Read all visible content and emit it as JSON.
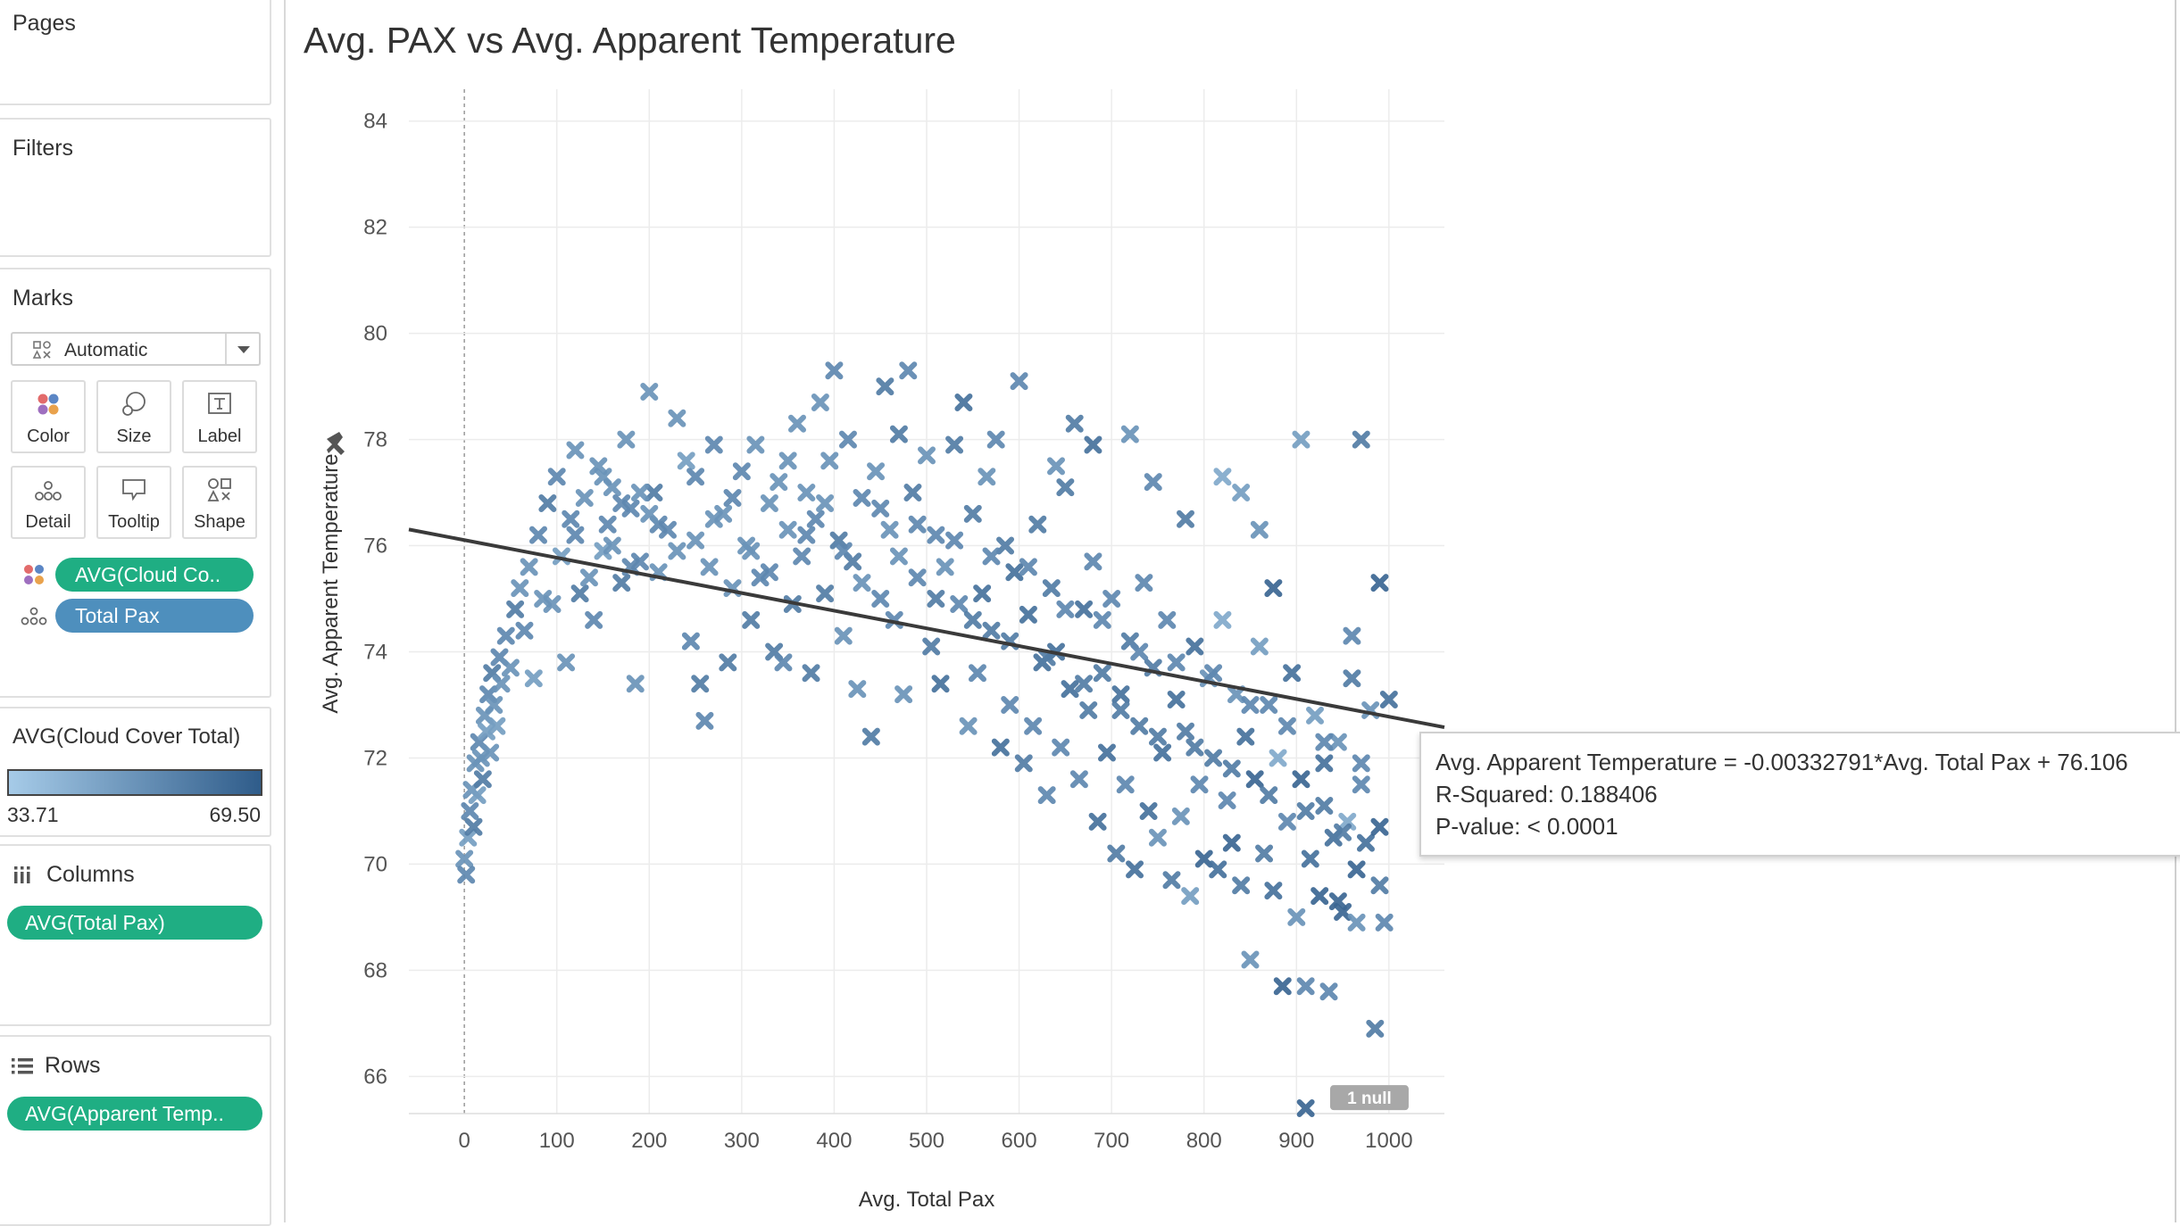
{
  "sidebar": {
    "pages_title": "Pages",
    "filters_title": "Filters",
    "marks_title": "Marks",
    "mark_type": "Automatic",
    "mark_buttons": [
      "Color",
      "Size",
      "Label",
      "Detail",
      "Tooltip",
      "Shape"
    ],
    "mark_fields": [
      {
        "label": "AVG(Cloud Co..",
        "icon": "color-dots-icon"
      },
      {
        "label": "Total Pax",
        "icon": "detail-dots-icon"
      }
    ],
    "legend": {
      "title": "AVG(Cloud Cover Total)",
      "min": "33.71",
      "max": "69.50",
      "color_low": "#a6cbe8",
      "color_high": "#2f5c8a"
    },
    "columns_title": "Columns",
    "columns_pill": "AVG(Total Pax)",
    "rows_title": "Rows",
    "rows_pill": "AVG(Apparent Temp.."
  },
  "chart_data": {
    "type": "scatter",
    "title": "Avg. PAX vs Avg. Apparent Temperature",
    "xlabel": "Avg. Total Pax",
    "ylabel": "Avg. Apparent Temperature",
    "xlim": [
      -60,
      1060
    ],
    "ylim": [
      65.3,
      84.6
    ],
    "x_ticks": [
      0,
      100,
      200,
      300,
      400,
      500,
      600,
      700,
      800,
      900,
      1000
    ],
    "y_ticks": [
      66,
      68,
      70,
      72,
      74,
      76,
      78,
      80,
      82,
      84
    ],
    "marker": "x",
    "trend_line": {
      "slope": -0.00332791,
      "intercept": 76.106
    },
    "null_badge": "1 null",
    "points": [
      [
        0,
        70.1,
        0.5
      ],
      [
        2,
        69.8,
        0.6
      ],
      [
        4,
        70.5,
        0.4
      ],
      [
        6,
        71.0,
        0.6
      ],
      [
        8,
        71.4,
        0.5
      ],
      [
        10,
        70.7,
        0.7
      ],
      [
        12,
        71.9,
        0.5
      ],
      [
        14,
        71.3,
        0.4
      ],
      [
        16,
        72.3,
        0.6
      ],
      [
        18,
        72.0,
        0.5
      ],
      [
        20,
        71.6,
        0.7
      ],
      [
        22,
        72.8,
        0.5
      ],
      [
        24,
        72.5,
        0.4
      ],
      [
        26,
        73.2,
        0.6
      ],
      [
        28,
        72.1,
        0.5
      ],
      [
        30,
        73.6,
        0.7
      ],
      [
        32,
        73.0,
        0.5
      ],
      [
        35,
        72.6,
        0.4
      ],
      [
        38,
        73.9,
        0.6
      ],
      [
        40,
        73.4,
        0.5
      ],
      [
        45,
        74.3,
        0.6
      ],
      [
        50,
        73.7,
        0.5
      ],
      [
        55,
        74.8,
        0.7
      ],
      [
        60,
        75.2,
        0.5
      ],
      [
        65,
        74.4,
        0.6
      ],
      [
        70,
        75.6,
        0.5
      ],
      [
        75,
        73.5,
        0.4
      ],
      [
        80,
        76.2,
        0.6
      ],
      [
        85,
        75.0,
        0.5
      ],
      [
        90,
        76.8,
        0.7
      ],
      [
        95,
        74.9,
        0.5
      ],
      [
        100,
        77.3,
        0.6
      ],
      [
        105,
        75.8,
        0.4
      ],
      [
        110,
        73.8,
        0.5
      ],
      [
        115,
        76.5,
        0.6
      ],
      [
        120,
        77.8,
        0.5
      ],
      [
        125,
        75.1,
        0.7
      ],
      [
        130,
        76.9,
        0.5
      ],
      [
        140,
        74.6,
        0.6
      ],
      [
        145,
        77.5,
        0.5
      ],
      [
        150,
        75.9,
        0.4
      ],
      [
        155,
        76.4,
        0.6
      ],
      [
        160,
        77.1,
        0.5
      ],
      [
        170,
        75.3,
        0.7
      ],
      [
        175,
        78.0,
        0.5
      ],
      [
        180,
        76.7,
        0.6
      ],
      [
        185,
        73.4,
        0.5
      ],
      [
        190,
        75.7,
        0.6
      ],
      [
        200,
        78.9,
        0.5
      ],
      [
        205,
        77.0,
        0.7
      ],
      [
        210,
        75.5,
        0.5
      ],
      [
        220,
        76.3,
        0.6
      ],
      [
        230,
        78.4,
        0.5
      ],
      [
        240,
        77.6,
        0.4
      ],
      [
        245,
        74.2,
        0.6
      ],
      [
        250,
        76.1,
        0.5
      ],
      [
        255,
        73.4,
        0.7
      ],
      [
        260,
        72.7,
        0.6
      ],
      [
        265,
        75.6,
        0.5
      ],
      [
        270,
        77.9,
        0.6
      ],
      [
        280,
        76.6,
        0.5
      ],
      [
        285,
        73.8,
        0.7
      ],
      [
        290,
        75.2,
        0.5
      ],
      [
        300,
        77.4,
        0.6
      ],
      [
        305,
        76.0,
        0.5
      ],
      [
        310,
        74.6,
        0.7
      ],
      [
        315,
        77.9,
        0.5
      ],
      [
        320,
        75.4,
        0.6
      ],
      [
        330,
        76.8,
        0.5
      ],
      [
        335,
        74.0,
        0.7
      ],
      [
        340,
        77.2,
        0.5
      ],
      [
        345,
        73.8,
        0.6
      ],
      [
        350,
        76.3,
        0.5
      ],
      [
        355,
        74.9,
        0.7
      ],
      [
        360,
        78.3,
        0.5
      ],
      [
        365,
        75.8,
        0.6
      ],
      [
        370,
        77.0,
        0.5
      ],
      [
        375,
        73.6,
        0.7
      ],
      [
        380,
        76.5,
        0.6
      ],
      [
        385,
        78.7,
        0.5
      ],
      [
        390,
        75.1,
        0.7
      ],
      [
        395,
        77.6,
        0.5
      ],
      [
        400,
        79.3,
        0.6
      ],
      [
        405,
        76.1,
        0.7
      ],
      [
        410,
        74.3,
        0.5
      ],
      [
        415,
        78.0,
        0.6
      ],
      [
        420,
        75.7,
        0.7
      ],
      [
        425,
        73.3,
        0.5
      ],
      [
        430,
        76.9,
        0.6
      ],
      [
        440,
        72.4,
        0.7
      ],
      [
        445,
        77.4,
        0.5
      ],
      [
        450,
        75.0,
        0.6
      ],
      [
        455,
        79.0,
        0.7
      ],
      [
        460,
        76.3,
        0.5
      ],
      [
        465,
        74.6,
        0.6
      ],
      [
        470,
        78.1,
        0.7
      ],
      [
        475,
        73.2,
        0.5
      ],
      [
        480,
        79.3,
        0.6
      ],
      [
        485,
        77.0,
        0.7
      ],
      [
        490,
        75.4,
        0.6
      ],
      [
        500,
        77.7,
        0.5
      ],
      [
        505,
        74.1,
        0.7
      ],
      [
        510,
        76.2,
        0.6
      ],
      [
        515,
        73.4,
        0.8
      ],
      [
        520,
        75.6,
        0.5
      ],
      [
        530,
        77.9,
        0.7
      ],
      [
        535,
        74.9,
        0.6
      ],
      [
        540,
        78.7,
        0.8
      ],
      [
        545,
        72.6,
        0.5
      ],
      [
        550,
        76.6,
        0.7
      ],
      [
        555,
        73.6,
        0.6
      ],
      [
        560,
        75.1,
        0.8
      ],
      [
        565,
        77.3,
        0.5
      ],
      [
        570,
        74.4,
        0.7
      ],
      [
        575,
        78.0,
        0.6
      ],
      [
        580,
        72.2,
        0.8
      ],
      [
        585,
        76.0,
        0.7
      ],
      [
        590,
        73.0,
        0.6
      ],
      [
        595,
        75.5,
        0.8
      ],
      [
        600,
        79.1,
        0.6
      ],
      [
        605,
        71.9,
        0.7
      ],
      [
        610,
        74.7,
        0.8
      ],
      [
        615,
        72.6,
        0.6
      ],
      [
        620,
        76.4,
        0.7
      ],
      [
        625,
        73.8,
        0.8
      ],
      [
        630,
        71.3,
        0.6
      ],
      [
        635,
        75.2,
        0.7
      ],
      [
        640,
        74.0,
        0.8
      ],
      [
        645,
        72.2,
        0.6
      ],
      [
        650,
        77.1,
        0.7
      ],
      [
        655,
        73.3,
        0.8
      ],
      [
        660,
        78.3,
        0.7
      ],
      [
        665,
        71.6,
        0.6
      ],
      [
        670,
        74.8,
        0.8
      ],
      [
        675,
        72.9,
        0.7
      ],
      [
        680,
        75.7,
        0.6
      ],
      [
        685,
        70.8,
        0.8
      ],
      [
        690,
        73.6,
        0.7
      ],
      [
        695,
        72.1,
        0.8
      ],
      [
        700,
        75.0,
        0.6
      ],
      [
        705,
        70.2,
        0.7
      ],
      [
        710,
        73.2,
        0.8
      ],
      [
        715,
        71.5,
        0.6
      ],
      [
        720,
        74.2,
        0.7
      ],
      [
        725,
        69.9,
        0.8
      ],
      [
        730,
        72.6,
        0.7
      ],
      [
        735,
        75.3,
        0.6
      ],
      [
        740,
        71.0,
        0.8
      ],
      [
        745,
        73.7,
        0.7
      ],
      [
        750,
        70.5,
        0.5
      ],
      [
        755,
        72.1,
        0.8
      ],
      [
        760,
        74.6,
        0.6
      ],
      [
        765,
        69.7,
        0.7
      ],
      [
        770,
        73.1,
        0.8
      ],
      [
        775,
        70.9,
        0.5
      ],
      [
        780,
        72.5,
        0.7
      ],
      [
        785,
        69.4,
        0.4
      ],
      [
        790,
        74.1,
        0.8
      ],
      [
        795,
        71.5,
        0.6
      ],
      [
        800,
        70.1,
        0.9
      ],
      [
        805,
        73.5,
        0.5
      ],
      [
        810,
        72.0,
        0.7
      ],
      [
        815,
        69.9,
        0.8
      ],
      [
        820,
        74.6,
        0.3
      ],
      [
        825,
        71.2,
        0.6
      ],
      [
        830,
        70.4,
        0.9
      ],
      [
        835,
        73.2,
        0.5
      ],
      [
        840,
        69.6,
        0.7
      ],
      [
        845,
        72.4,
        0.8
      ],
      [
        850,
        68.2,
        0.5
      ],
      [
        855,
        71.6,
        0.9
      ],
      [
        860,
        74.1,
        0.4
      ],
      [
        865,
        70.2,
        0.7
      ],
      [
        870,
        73.0,
        0.6
      ],
      [
        875,
        69.5,
        0.8
      ],
      [
        880,
        72.0,
        0.3
      ],
      [
        885,
        67.7,
        0.9
      ],
      [
        890,
        70.8,
        0.6
      ],
      [
        895,
        73.6,
        0.8
      ],
      [
        900,
        69.0,
        0.5
      ],
      [
        905,
        71.6,
        0.9
      ],
      [
        910,
        67.7,
        0.6
      ],
      [
        915,
        70.1,
        0.8
      ],
      [
        920,
        72.8,
        0.4
      ],
      [
        925,
        69.4,
        0.9
      ],
      [
        930,
        71.1,
        0.7
      ],
      [
        935,
        67.6,
        0.6
      ],
      [
        940,
        70.5,
        0.8
      ],
      [
        945,
        72.3,
        0.5
      ],
      [
        950,
        69.1,
        0.9
      ],
      [
        955,
        70.8,
        0.3
      ],
      [
        960,
        73.5,
        0.7
      ],
      [
        965,
        69.9,
        0.9
      ],
      [
        970,
        71.5,
        0.6
      ],
      [
        975,
        70.4,
        0.8
      ],
      [
        980,
        72.9,
        0.5
      ],
      [
        985,
        66.9,
        0.7
      ],
      [
        990,
        70.7,
        0.9
      ],
      [
        995,
        68.9,
        0.6
      ],
      [
        1000,
        73.1,
        0.8
      ],
      [
        910,
        65.4,
        0.9
      ],
      [
        905,
        78.0,
        0.4
      ],
      [
        970,
        78.0,
        0.7
      ],
      [
        930,
        71.9,
        0.8
      ],
      [
        990,
        75.3,
        0.9
      ],
      [
        960,
        74.3,
        0.6
      ],
      [
        875,
        75.2,
        0.9
      ],
      [
        860,
        76.3,
        0.5
      ],
      [
        840,
        77.0,
        0.4
      ],
      [
        820,
        77.3,
        0.3
      ],
      [
        780,
        76.5,
        0.7
      ],
      [
        745,
        77.2,
        0.6
      ],
      [
        720,
        78.1,
        0.5
      ],
      [
        680,
        77.9,
        0.8
      ],
      [
        640,
        77.5,
        0.5
      ],
      [
        150,
        77.3,
        0.5
      ],
      [
        170,
        76.8,
        0.6
      ],
      [
        190,
        77.0,
        0.5
      ],
      [
        210,
        76.4,
        0.6
      ],
      [
        230,
        75.9,
        0.5
      ],
      [
        120,
        76.2,
        0.6
      ],
      [
        135,
        75.4,
        0.5
      ],
      [
        160,
        76.0,
        0.5
      ],
      [
        180,
        75.6,
        0.6
      ],
      [
        200,
        76.6,
        0.5
      ],
      [
        250,
        77.3,
        0.6
      ],
      [
        270,
        76.5,
        0.5
      ],
      [
        290,
        76.9,
        0.6
      ],
      [
        310,
        75.9,
        0.5
      ],
      [
        330,
        75.5,
        0.6
      ],
      [
        350,
        77.6,
        0.5
      ],
      [
        370,
        76.2,
        0.6
      ],
      [
        390,
        76.8,
        0.5
      ],
      [
        410,
        75.9,
        0.6
      ],
      [
        430,
        75.3,
        0.5
      ],
      [
        450,
        76.7,
        0.6
      ],
      [
        470,
        75.8,
        0.5
      ],
      [
        490,
        76.4,
        0.6
      ],
      [
        510,
        75.0,
        0.7
      ],
      [
        530,
        76.1,
        0.6
      ],
      [
        550,
        74.6,
        0.7
      ],
      [
        570,
        75.8,
        0.6
      ],
      [
        590,
        74.2,
        0.7
      ],
      [
        610,
        75.6,
        0.6
      ],
      [
        630,
        73.9,
        0.7
      ],
      [
        650,
        74.8,
        0.6
      ],
      [
        670,
        73.4,
        0.7
      ],
      [
        690,
        74.6,
        0.6
      ],
      [
        710,
        72.9,
        0.7
      ],
      [
        730,
        74.0,
        0.6
      ],
      [
        750,
        72.4,
        0.7
      ],
      [
        770,
        73.8,
        0.6
      ],
      [
        790,
        72.2,
        0.7
      ],
      [
        810,
        73.6,
        0.6
      ],
      [
        830,
        71.8,
        0.7
      ],
      [
        850,
        73.0,
        0.6
      ],
      [
        870,
        71.3,
        0.7
      ],
      [
        890,
        72.6,
        0.6
      ],
      [
        910,
        71.0,
        0.7
      ],
      [
        930,
        72.3,
        0.6
      ],
      [
        950,
        70.6,
        0.7
      ],
      [
        970,
        71.9,
        0.6
      ],
      [
        990,
        69.6,
        0.7
      ],
      [
        945,
        69.3,
        0.9
      ],
      [
        965,
        68.9,
        0.5
      ]
    ]
  },
  "tooltip": {
    "line1": "Avg. Apparent Temperature = -0.00332791*Avg. Total Pax + 76.106",
    "line2": "R-Squared: 0.188406",
    "line3": "P-value: < 0.0001"
  }
}
